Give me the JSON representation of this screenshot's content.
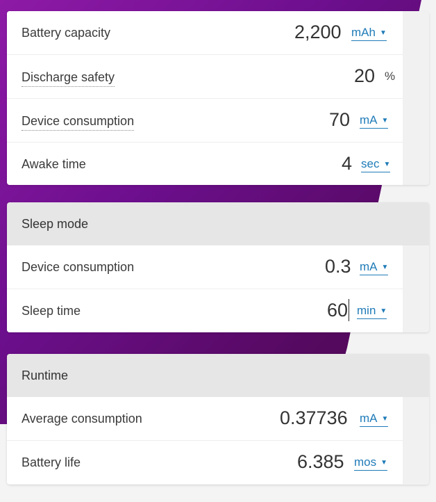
{
  "general": {
    "battery_capacity": {
      "label": "Battery capacity",
      "value": "2,200",
      "unit": "mAh"
    },
    "discharge_safety": {
      "label": "Discharge safety",
      "value": "20",
      "unit": "%"
    },
    "device_consumption": {
      "label": "Device consumption",
      "value": "70",
      "unit": "mA"
    },
    "awake_time": {
      "label": "Awake time",
      "value": "4",
      "unit": "sec"
    }
  },
  "sleep_mode": {
    "title": "Sleep mode",
    "device_consumption": {
      "label": "Device consumption",
      "value": "0.3",
      "unit": "mA"
    },
    "sleep_time": {
      "label": "Sleep time",
      "value": "60",
      "unit": "min"
    }
  },
  "runtime": {
    "title": "Runtime",
    "average_consumption": {
      "label": "Average consumption",
      "value": "0.37736",
      "unit": "mA"
    },
    "battery_life": {
      "label": "Battery life",
      "value": "6.385",
      "unit": "mos"
    }
  },
  "icons": {
    "dropdown": "caret-down-icon"
  }
}
